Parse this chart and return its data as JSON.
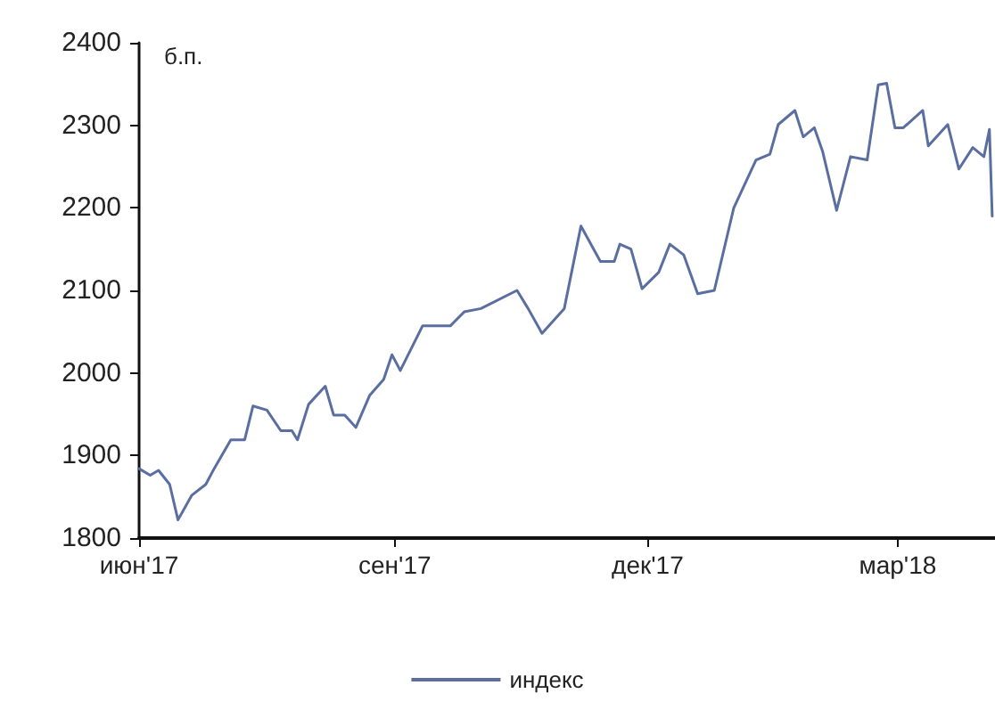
{
  "chart_data": {
    "type": "line",
    "ylabel": "б.п.",
    "legend": "bottom",
    "grid": false,
    "marker": "none",
    "line_style": "solid",
    "xlim": [
      "2017-06-01",
      "2018-04-05"
    ],
    "xticks": [
      {
        "value": "2017-06-01",
        "label": "июн'17"
      },
      {
        "value": "2017-09-01",
        "label": "сен'17"
      },
      {
        "value": "2017-12-01",
        "label": "дек'17"
      },
      {
        "value": "2018-03-01",
        "label": "мар'18"
      }
    ],
    "ylim": [
      1800,
      2400
    ],
    "yticks": [
      1800,
      1900,
      2000,
      2100,
      2200,
      2300,
      2400
    ],
    "x": [
      "2017-06-01",
      "2017-06-05",
      "2017-06-08",
      "2017-06-12",
      "2017-06-15",
      "2017-06-20",
      "2017-06-25",
      "2017-06-28",
      "2017-07-04",
      "2017-07-09",
      "2017-07-12",
      "2017-07-17",
      "2017-07-22",
      "2017-07-26",
      "2017-07-28",
      "2017-08-01",
      "2017-08-07",
      "2017-08-10",
      "2017-08-14",
      "2017-08-18",
      "2017-08-23",
      "2017-08-28",
      "2017-08-31",
      "2017-09-03",
      "2017-09-11",
      "2017-09-21",
      "2017-09-26",
      "2017-10-02",
      "2017-10-15",
      "2017-10-19",
      "2017-10-24",
      "2017-11-01",
      "2017-11-07",
      "2017-11-14",
      "2017-11-19",
      "2017-11-21",
      "2017-11-25",
      "2017-11-29",
      "2017-12-05",
      "2017-12-09",
      "2017-12-14",
      "2017-12-19",
      "2017-12-25",
      "2018-01-01",
      "2018-01-09",
      "2018-01-14",
      "2018-01-17",
      "2018-01-23",
      "2018-01-26",
      "2018-01-30",
      "2018-02-02",
      "2018-02-07",
      "2018-02-12",
      "2018-02-18",
      "2018-02-22",
      "2018-02-25",
      "2018-02-28",
      "2018-03-03",
      "2018-03-10",
      "2018-03-12",
      "2018-03-19",
      "2018-03-23",
      "2018-03-28",
      "2018-04-01",
      "2018-04-03",
      "2018-04-04"
    ],
    "series": [
      {
        "name": "индекс",
        "color": "#5a6ea0",
        "values": [
          1884,
          1876,
          1882,
          1865,
          1822,
          1852,
          1865,
          1884,
          1919,
          1919,
          1960,
          1955,
          1930,
          1930,
          1919,
          1962,
          1984,
          1949,
          1949,
          1934,
          1973,
          1992,
          2022,
          2003,
          2057,
          2057,
          2074,
          2078,
          2100,
          2078,
          2048,
          2078,
          2178,
          2135,
          2135,
          2156,
          2150,
          2102,
          2122,
          2156,
          2143,
          2096,
          2100,
          2200,
          2258,
          2265,
          2301,
          2318,
          2286,
          2297,
          2268,
          2197,
          2262,
          2258,
          2349,
          2351,
          2297,
          2297,
          2318,
          2275,
          2301,
          2247,
          2273,
          2262,
          2295,
          2190
        ]
      }
    ]
  }
}
